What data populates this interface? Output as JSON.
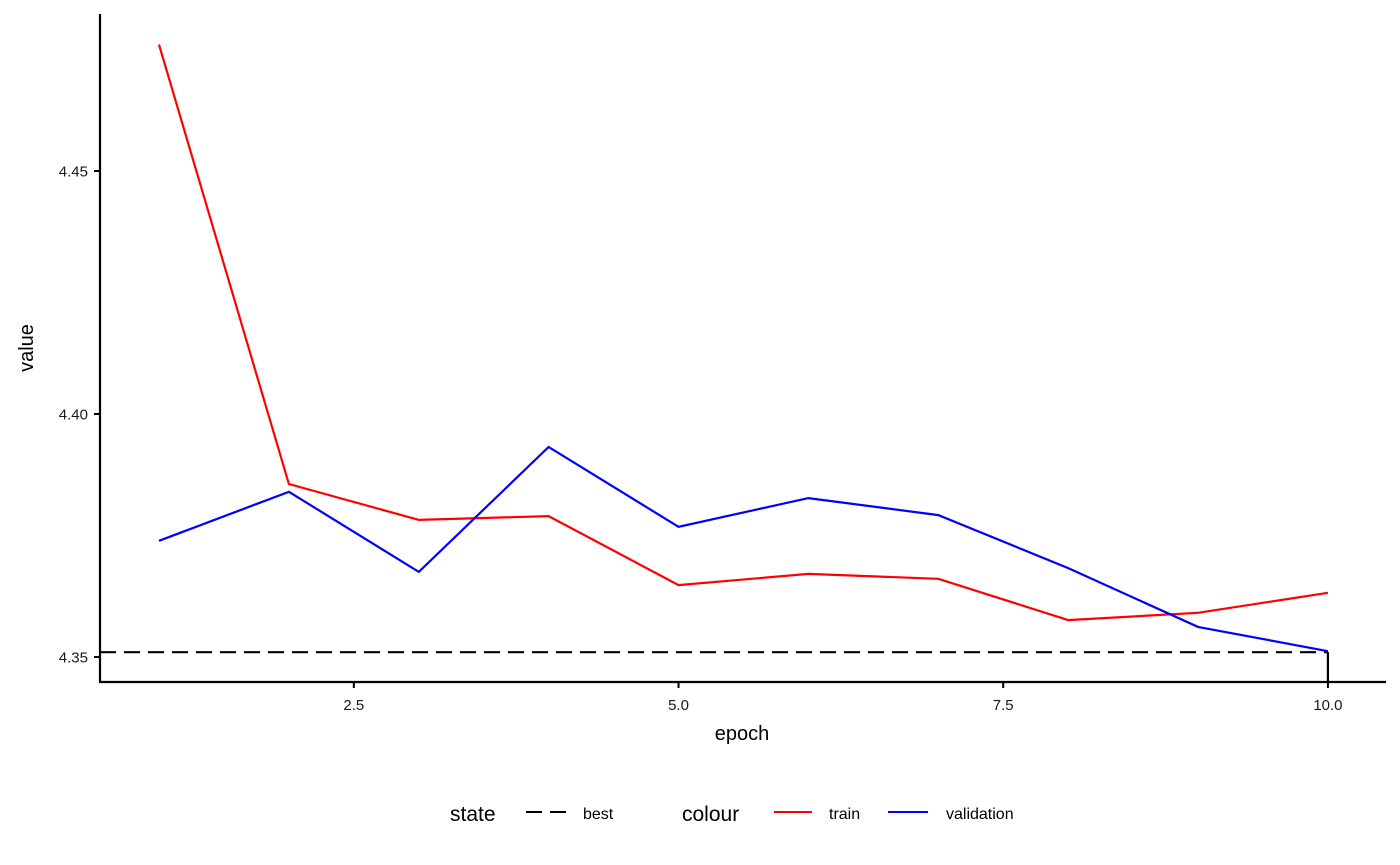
{
  "chart_data": {
    "type": "line",
    "title": "",
    "xlabel": "epoch",
    "ylabel": "value",
    "x": [
      1,
      2,
      3,
      4,
      5,
      6,
      7,
      8,
      9,
      10
    ],
    "xlim": [
      0.55,
      10.45
    ],
    "ylim": [
      4.3453,
      4.4818
    ],
    "x_ticks": [
      2.5,
      5.0,
      7.5,
      10.0
    ],
    "x_tick_labels": [
      "2.5",
      "5.0",
      "7.5",
      "10.0"
    ],
    "y_ticks": [
      4.35,
      4.4,
      4.45
    ],
    "y_tick_labels": [
      "4.35",
      "4.40",
      "4.45"
    ],
    "grid": false,
    "legend_position": "bottom",
    "series": [
      {
        "name": "train",
        "legend_group": "colour",
        "color": "#ff0000",
        "linestyle": "solid",
        "values": [
          4.476,
          4.3856,
          4.3782,
          4.379,
          4.3648,
          4.3671,
          4.3661,
          4.3576,
          4.3591,
          4.3632
        ]
      },
      {
        "name": "validation",
        "legend_group": "colour",
        "color": "#0000ff",
        "linestyle": "solid",
        "values": [
          4.3739,
          4.384,
          4.3675,
          4.3932,
          4.3768,
          4.3827,
          4.3792,
          4.3683,
          4.3562,
          4.3512
        ]
      }
    ],
    "annotations": [
      {
        "name": "best",
        "legend_group": "state",
        "type": "dashed-crosshair",
        "color": "#000000",
        "linestyle": "dashed",
        "x": 10,
        "y": 4.3512
      }
    ],
    "legend": {
      "groups": [
        {
          "title": "state",
          "entries": [
            {
              "label": "best",
              "color": "#000000",
              "linestyle": "dashed"
            }
          ]
        },
        {
          "title": "colour",
          "entries": [
            {
              "label": "train",
              "color": "#ff0000",
              "linestyle": "solid"
            },
            {
              "label": "validation",
              "color": "#0000ff",
              "linestyle": "solid"
            }
          ]
        }
      ]
    }
  }
}
